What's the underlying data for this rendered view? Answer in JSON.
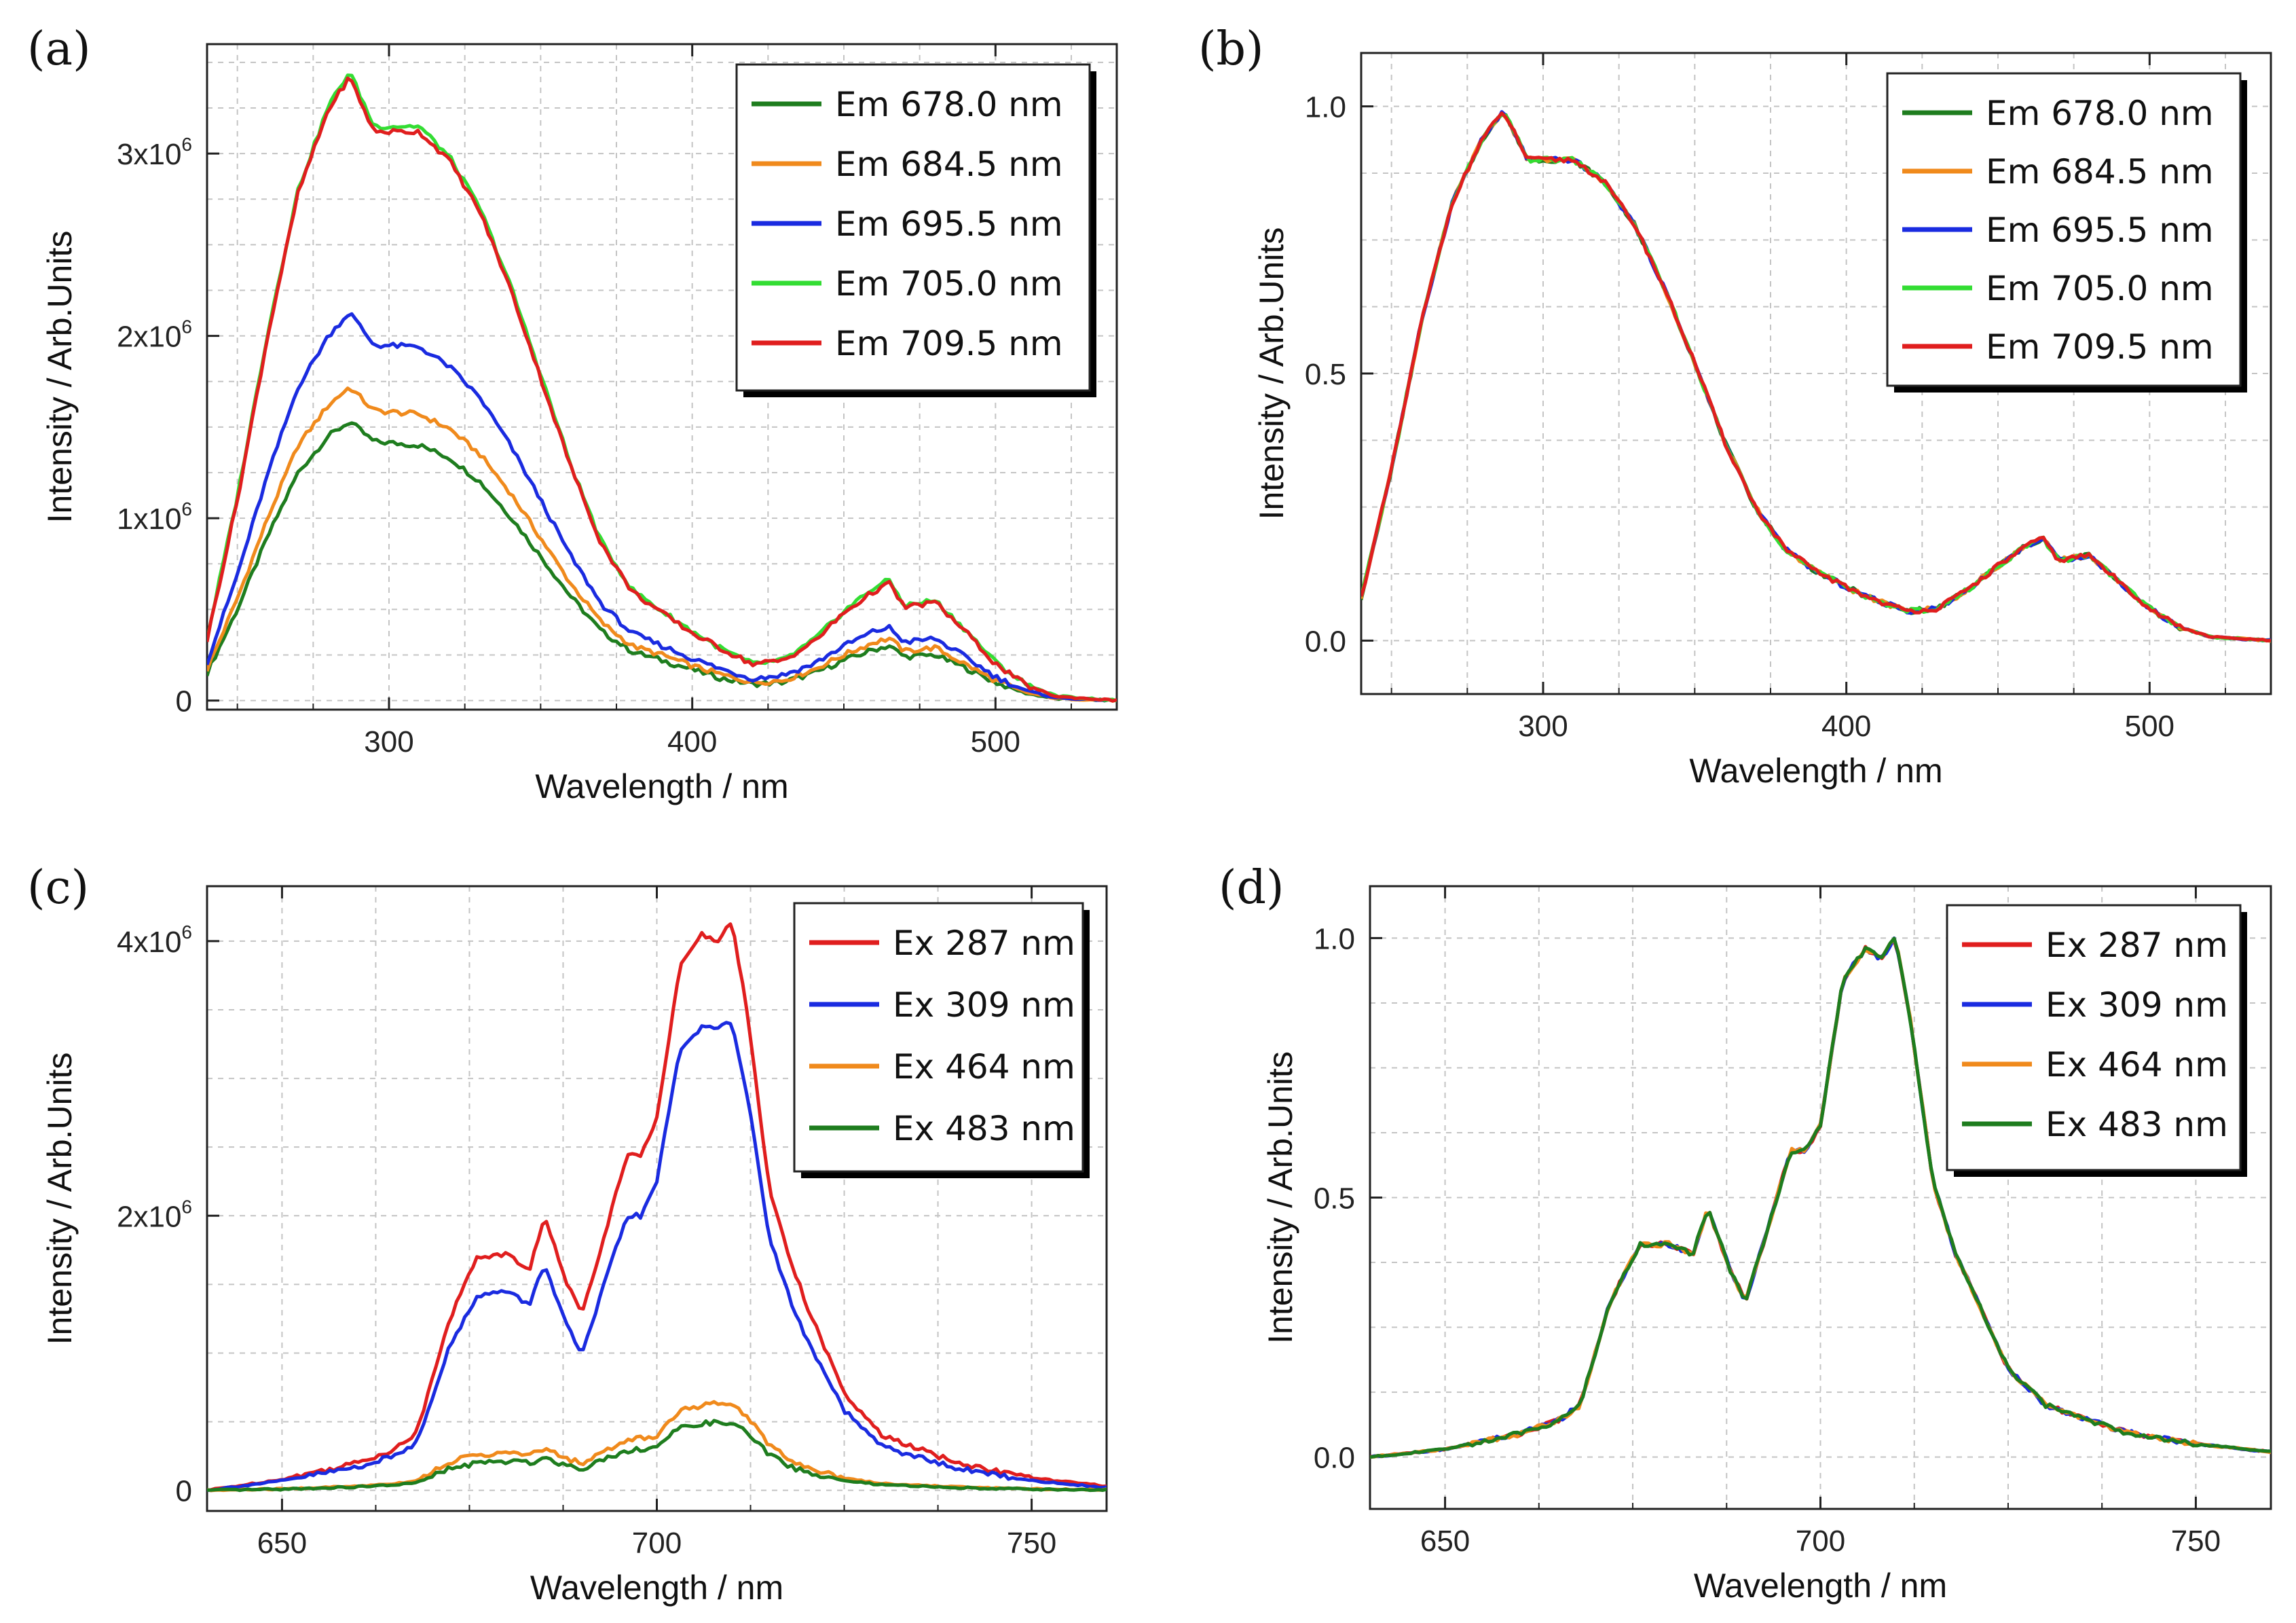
{
  "chart_data": [
    {
      "panel": "(a)",
      "type": "line",
      "xlabel": "Wavelength / nm",
      "ylabel": "Intensity / Arb.Units",
      "xlim": [
        240,
        540
      ],
      "ylim": [
        -50000,
        3600000
      ],
      "xticks": [
        300,
        400,
        500
      ],
      "xtick_labels": [
        "300",
        "400",
        "500"
      ],
      "yticks": [
        0,
        1000000,
        2000000,
        3000000
      ],
      "ytick_labels": [
        {
          "mant": "0",
          "exp": ""
        },
        {
          "mant": "1x10",
          "exp": "6"
        },
        {
          "mant": "2x10",
          "exp": "6"
        },
        {
          "mant": "3x10",
          "exp": "6"
        }
      ],
      "legend_position": "top-right",
      "series": [
        {
          "name": "Em 678.0 nm",
          "color": "#1e7d1e",
          "x": [
            240,
            250,
            260,
            270,
            280,
            287,
            295,
            310,
            320,
            330,
            340,
            350,
            360,
            370,
            380,
            390,
            400,
            410,
            420,
            430,
            440,
            450,
            460,
            465,
            470,
            480,
            490,
            500,
            510,
            520,
            540
          ],
          "y": [
            150000,
            500000,
            900000,
            1250000,
            1450000,
            1530000,
            1420000,
            1400000,
            1330000,
            1200000,
            1010000,
            790000,
            570000,
            380000,
            270000,
            220000,
            170000,
            120000,
            90000,
            100000,
            150000,
            220000,
            280000,
            300000,
            240000,
            250000,
            180000,
            100000,
            40000,
            10000,
            0
          ]
        },
        {
          "name": "Em 684.5 nm",
          "color": "#f08a1c",
          "x": [
            240,
            250,
            260,
            270,
            280,
            287,
            295,
            310,
            320,
            330,
            340,
            350,
            360,
            370,
            380,
            390,
            400,
            410,
            420,
            430,
            440,
            450,
            460,
            465,
            470,
            480,
            490,
            500,
            510,
            520,
            540
          ],
          "y": [
            170000,
            560000,
            1000000,
            1400000,
            1620000,
            1720000,
            1590000,
            1570000,
            1490000,
            1350000,
            1140000,
            890000,
            640000,
            430000,
            300000,
            250000,
            190000,
            140000,
            100000,
            110000,
            170000,
            250000,
            320000,
            340000,
            270000,
            290000,
            200000,
            110000,
            45000,
            12000,
            0
          ]
        },
        {
          "name": "Em 695.5 nm",
          "color": "#1a2be0",
          "x": [
            240,
            250,
            260,
            270,
            280,
            287,
            295,
            310,
            320,
            330,
            340,
            350,
            360,
            370,
            380,
            390,
            400,
            410,
            420,
            430,
            440,
            450,
            460,
            465,
            470,
            480,
            490,
            500,
            510,
            520,
            540
          ],
          "y": [
            210000,
            690000,
            1240000,
            1720000,
            2000000,
            2130000,
            1950000,
            1940000,
            1830000,
            1660000,
            1400000,
            1100000,
            790000,
            530000,
            370000,
            300000,
            230000,
            170000,
            120000,
            140000,
            200000,
            300000,
            380000,
            400000,
            320000,
            340000,
            240000,
            130000,
            55000,
            15000,
            0
          ]
        },
        {
          "name": "Em 705.0 nm",
          "color": "#33dd33",
          "x": [
            240,
            250,
            260,
            270,
            280,
            287,
            295,
            310,
            320,
            330,
            340,
            350,
            360,
            370,
            380,
            390,
            400,
            410,
            420,
            430,
            440,
            450,
            460,
            465,
            470,
            480,
            490,
            500,
            510,
            520,
            540
          ],
          "y": [
            340000,
            1120000,
            2020000,
            2800000,
            3260000,
            3450000,
            3150000,
            3150000,
            2980000,
            2700000,
            2280000,
            1790000,
            1290000,
            870000,
            610000,
            490000,
            380000,
            280000,
            200000,
            220000,
            330000,
            490000,
            620000,
            660000,
            520000,
            550000,
            390000,
            210000,
            90000,
            25000,
            0
          ]
        },
        {
          "name": "Em 709.5 nm",
          "color": "#e01e1e",
          "x": [
            240,
            250,
            260,
            270,
            280,
            287,
            295,
            310,
            320,
            330,
            340,
            350,
            360,
            370,
            380,
            390,
            400,
            410,
            420,
            430,
            440,
            450,
            460,
            465,
            470,
            480,
            490,
            500,
            510,
            520,
            540
          ],
          "y": [
            330000,
            1100000,
            2000000,
            2780000,
            3240000,
            3420000,
            3120000,
            3120000,
            2960000,
            2680000,
            2260000,
            1770000,
            1280000,
            860000,
            600000,
            480000,
            370000,
            280000,
            200000,
            220000,
            320000,
            480000,
            600000,
            640000,
            510000,
            540000,
            380000,
            200000,
            85000,
            22000,
            0
          ]
        }
      ]
    },
    {
      "panel": "(b)",
      "type": "line",
      "xlabel": "Wavelength / nm",
      "ylabel": "Intensity / Arb.Units",
      "xlim": [
        240,
        540
      ],
      "ylim": [
        -0.1,
        1.1
      ],
      "xticks": [
        300,
        400,
        500
      ],
      "xtick_labels": [
        "300",
        "400",
        "500"
      ],
      "yticks": [
        0.0,
        0.5,
        1.0
      ],
      "ytick_labels": [
        "0.0",
        "0.5",
        "1.0"
      ],
      "legend_position": "top-right",
      "series": [
        {
          "name": "Em 678.0 nm",
          "color": "#1e7d1e"
        },
        {
          "name": "Em 684.5 nm",
          "color": "#f08a1c"
        },
        {
          "name": "Em 695.5 nm",
          "color": "#1a2be0"
        },
        {
          "name": "Em 705.0 nm",
          "color": "#33dd33"
        },
        {
          "name": "Em 709.5 nm",
          "color": "#e01e1e"
        }
      ],
      "shared_x": [
        240,
        250,
        260,
        270,
        280,
        287,
        295,
        310,
        320,
        330,
        340,
        350,
        360,
        370,
        380,
        390,
        400,
        410,
        420,
        430,
        440,
        450,
        460,
        465,
        470,
        480,
        490,
        500,
        510,
        520,
        540
      ],
      "shared_y": [
        0.08,
        0.32,
        0.6,
        0.82,
        0.94,
        0.99,
        0.9,
        0.9,
        0.86,
        0.78,
        0.66,
        0.52,
        0.37,
        0.25,
        0.17,
        0.13,
        0.1,
        0.075,
        0.055,
        0.06,
        0.095,
        0.14,
        0.18,
        0.19,
        0.15,
        0.16,
        0.11,
        0.06,
        0.025,
        0.007,
        0.0
      ]
    },
    {
      "panel": "(c)",
      "type": "line",
      "xlabel": "Wavelength / nm",
      "ylabel": "Intensity / Arb.Units",
      "xlim": [
        640,
        760
      ],
      "ylim": [
        -150000,
        4400000
      ],
      "xticks": [
        650,
        700,
        750
      ],
      "xtick_labels": [
        "650",
        "700",
        "750"
      ],
      "yticks": [
        0,
        2000000,
        4000000
      ],
      "ytick_labels": [
        {
          "mant": "0",
          "exp": ""
        },
        {
          "mant": "2x10",
          "exp": "6"
        },
        {
          "mant": "4x10",
          "exp": "6"
        }
      ],
      "legend_position": "top-right",
      "series": [
        {
          "name": "Ex 287 nm",
          "color": "#e01e1e",
          "x": [
            640,
            650,
            660,
            665,
            668,
            672,
            676,
            680,
            683,
            685,
            688,
            690,
            693,
            696,
            698,
            700,
            703,
            706,
            708,
            710,
            712,
            715,
            718,
            720,
            725,
            730,
            740,
            750,
            760
          ],
          "y": [
            0,
            80000,
            200000,
            300000,
            420000,
            1200000,
            1700000,
            1720000,
            1600000,
            2000000,
            1500000,
            1300000,
            1850000,
            2450000,
            2450000,
            2700000,
            3800000,
            4050000,
            4000000,
            4150000,
            3500000,
            2200000,
            1650000,
            1350000,
            700000,
            400000,
            200000,
            90000,
            30000
          ]
        },
        {
          "name": "Ex 309 nm",
          "color": "#1a2be0",
          "x": [
            640,
            650,
            660,
            665,
            668,
            672,
            676,
            680,
            683,
            685,
            688,
            690,
            693,
            696,
            698,
            700,
            703,
            706,
            708,
            710,
            712,
            715,
            718,
            720,
            725,
            730,
            740,
            750,
            760
          ],
          "y": [
            0,
            70000,
            170000,
            250000,
            350000,
            1000000,
            1420000,
            1450000,
            1350000,
            1650000,
            1200000,
            980000,
            1500000,
            2000000,
            2000000,
            2250000,
            3200000,
            3380000,
            3350000,
            3420000,
            2900000,
            1850000,
            1350000,
            1100000,
            580000,
            320000,
            160000,
            70000,
            20000
          ]
        },
        {
          "name": "Ex 464 nm",
          "color": "#f08a1c",
          "x": [
            640,
            650,
            660,
            665,
            668,
            672,
            676,
            680,
            683,
            685,
            688,
            690,
            693,
            696,
            698,
            700,
            703,
            706,
            708,
            710,
            712,
            715,
            718,
            720,
            725,
            730,
            740,
            750,
            760
          ],
          "y": [
            0,
            10000,
            30000,
            50000,
            70000,
            200000,
            260000,
            270000,
            260000,
            300000,
            230000,
            200000,
            280000,
            370000,
            380000,
            400000,
            580000,
            620000,
            630000,
            620000,
            550000,
            330000,
            220000,
            170000,
            90000,
            50000,
            25000,
            10000,
            5000
          ]
        },
        {
          "name": "Ex 483 nm",
          "color": "#1e7d1e",
          "x": [
            640,
            650,
            660,
            665,
            668,
            672,
            676,
            680,
            683,
            685,
            688,
            690,
            693,
            696,
            698,
            700,
            703,
            706,
            708,
            710,
            712,
            715,
            718,
            720,
            725,
            730,
            740,
            750,
            760
          ],
          "y": [
            0,
            8000,
            25000,
            40000,
            55000,
            150000,
            200000,
            210000,
            200000,
            240000,
            180000,
            160000,
            230000,
            290000,
            300000,
            320000,
            450000,
            490000,
            490000,
            490000,
            420000,
            260000,
            170000,
            130000,
            70000,
            40000,
            20000,
            8000,
            3000
          ]
        }
      ]
    },
    {
      "panel": "(d)",
      "type": "line",
      "xlabel": "Wavelength / nm",
      "ylabel": "Intensity / Arb.Units",
      "xlim": [
        640,
        760
      ],
      "ylim": [
        -0.1,
        1.1
      ],
      "xticks": [
        650,
        700,
        750
      ],
      "xtick_labels": [
        "650",
        "700",
        "750"
      ],
      "yticks": [
        0.0,
        0.5,
        1.0
      ],
      "ytick_labels": [
        "0.0",
        "0.5",
        "1.0"
      ],
      "legend_position": "top-right",
      "series": [
        {
          "name": "Ex 287 nm",
          "color": "#e01e1e"
        },
        {
          "name": "Ex 309 nm",
          "color": "#1a2be0"
        },
        {
          "name": "Ex 464 nm",
          "color": "#f08a1c"
        },
        {
          "name": "Ex 483 nm",
          "color": "#1e7d1e"
        }
      ],
      "shared_x": [
        640,
        650,
        660,
        665,
        668,
        672,
        676,
        680,
        683,
        685,
        688,
        690,
        693,
        696,
        698,
        700,
        703,
        706,
        708,
        710,
        712,
        715,
        718,
        720,
        725,
        730,
        740,
        750,
        760
      ],
      "shared_y": [
        0.0,
        0.015,
        0.045,
        0.07,
        0.1,
        0.3,
        0.41,
        0.41,
        0.39,
        0.48,
        0.36,
        0.3,
        0.44,
        0.59,
        0.59,
        0.64,
        0.92,
        0.98,
        0.96,
        1.0,
        0.84,
        0.53,
        0.39,
        0.33,
        0.17,
        0.1,
        0.05,
        0.025,
        0.01
      ]
    }
  ],
  "panels": {
    "a": {
      "label": "(a)"
    },
    "b": {
      "label": "(b)"
    },
    "c": {
      "label": "(c)"
    },
    "d": {
      "label": "(d)"
    }
  }
}
